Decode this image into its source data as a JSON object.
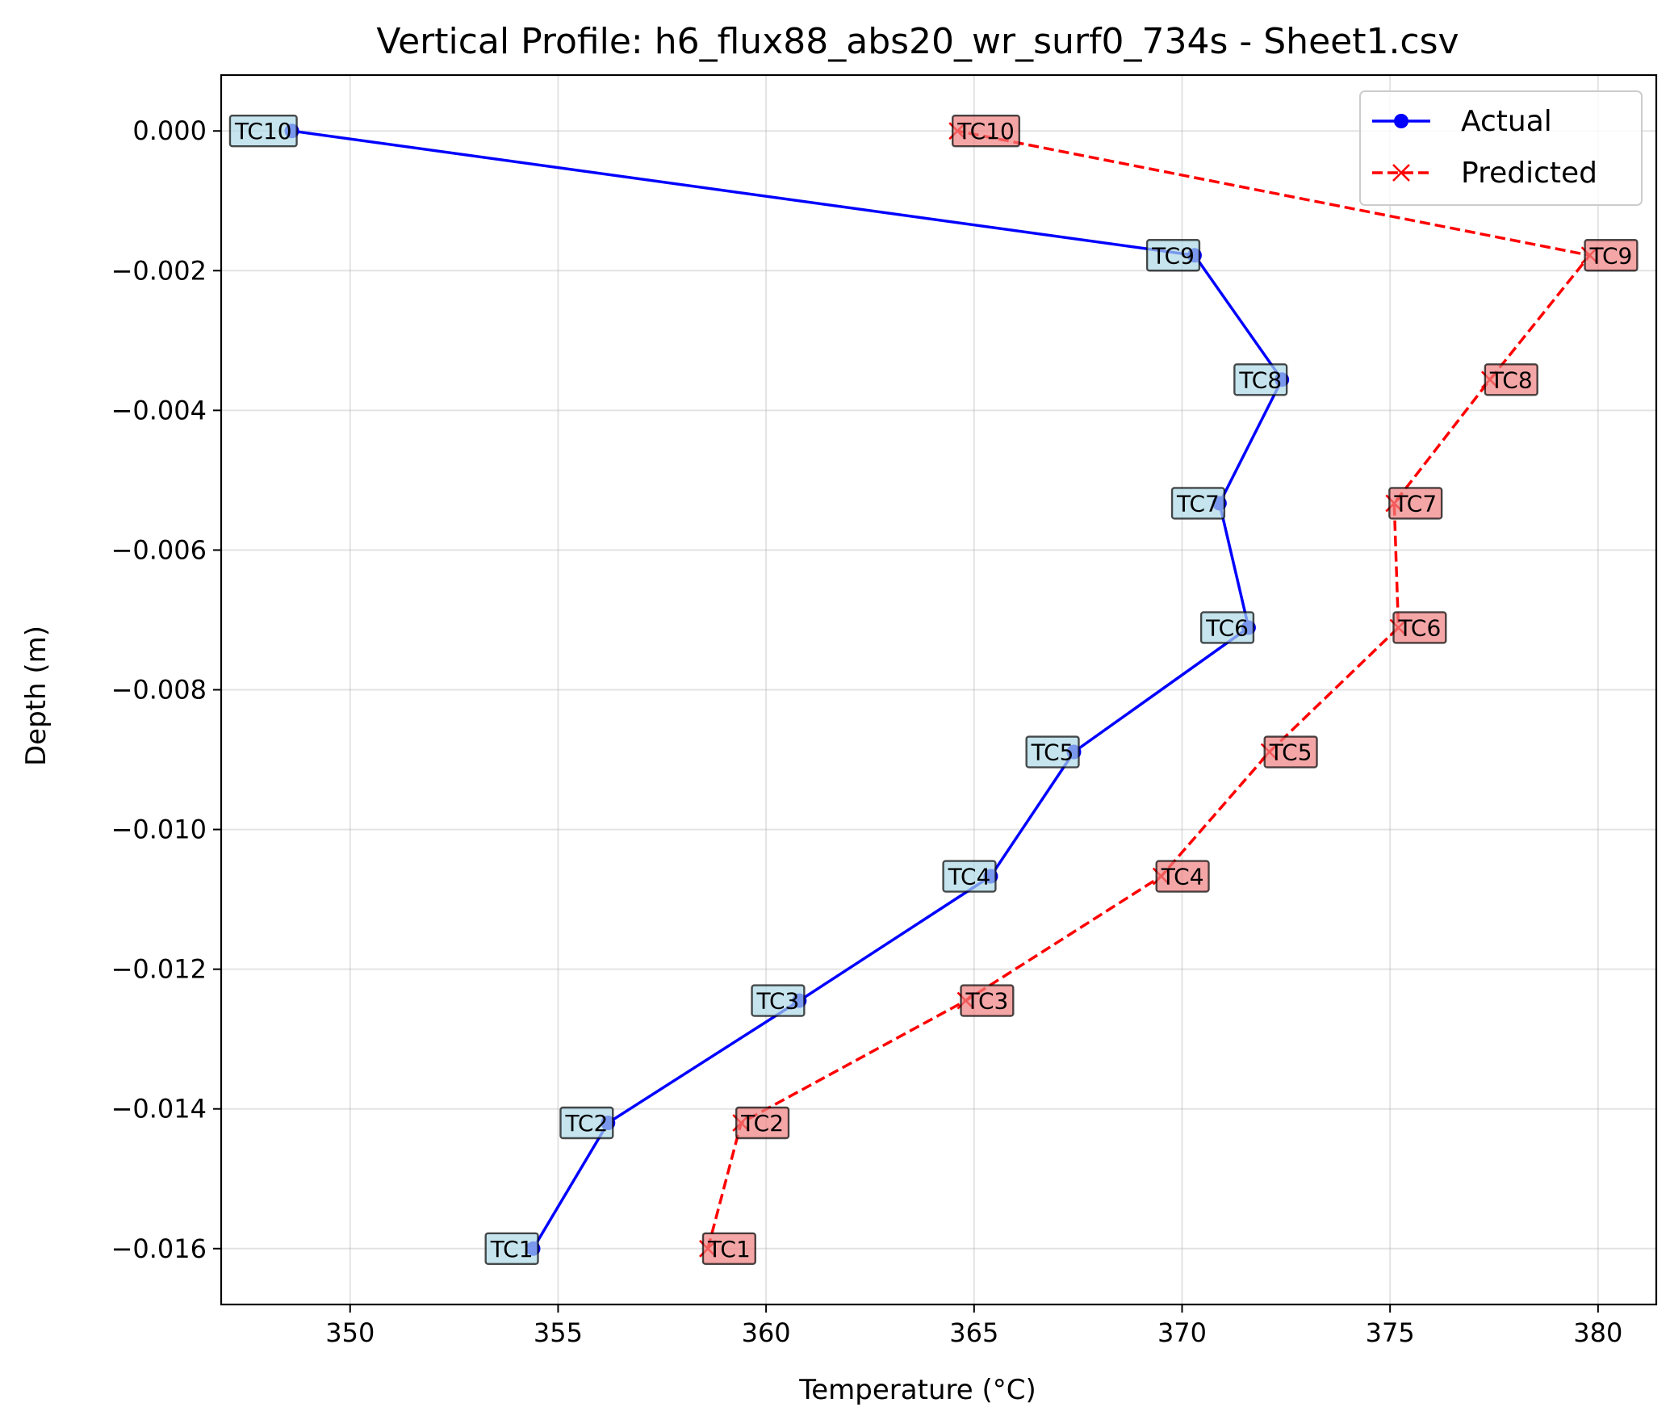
{
  "chart_data": {
    "type": "line",
    "title": "Vertical Profile: h6_flux88_abs20_wr_surf0_734s - Sheet1.csv",
    "xlabel": "Temperature (°C)",
    "ylabel": "Depth (m)",
    "xlim": [
      346.9,
      381.4
    ],
    "ylim": [
      -0.0168,
      0.0008
    ],
    "xticks": [
      350,
      355,
      360,
      365,
      370,
      375,
      380
    ],
    "xtick_labels": [
      "350",
      "355",
      "360",
      "365",
      "370",
      "375",
      "380"
    ],
    "yticks": [
      0.0,
      -0.002,
      -0.004,
      -0.006,
      -0.008,
      -0.01,
      -0.012,
      -0.014,
      -0.016
    ],
    "ytick_labels": [
      "0.000",
      "−0.002",
      "−0.004",
      "−0.006",
      "−0.008",
      "−0.010",
      "−0.012",
      "−0.014",
      "−0.016"
    ],
    "grid": true,
    "legend_position": "top-right",
    "series": [
      {
        "name": "Actual",
        "color": "#0000ff",
        "line_style": "solid",
        "marker": "circle",
        "label_bg": "#add8e6",
        "points": [
          {
            "label": "TC1",
            "temperature": 354.4,
            "depth": -0.016
          },
          {
            "label": "TC2",
            "temperature": 356.2,
            "depth": -0.0142
          },
          {
            "label": "TC3",
            "temperature": 360.8,
            "depth": -0.01245
          },
          {
            "label": "TC4",
            "temperature": 365.4,
            "depth": -0.01067
          },
          {
            "label": "TC5",
            "temperature": 367.4,
            "depth": -0.00889
          },
          {
            "label": "TC6",
            "temperature": 371.6,
            "depth": -0.00711
          },
          {
            "label": "TC7",
            "temperature": 370.9,
            "depth": -0.00533
          },
          {
            "label": "TC8",
            "temperature": 372.4,
            "depth": -0.00356
          },
          {
            "label": "TC9",
            "temperature": 370.3,
            "depth": -0.00178
          },
          {
            "label": "TC10",
            "temperature": 348.6,
            "depth": 0.0
          }
        ]
      },
      {
        "name": "Predicted",
        "color": "#ff0000",
        "line_style": "dashed",
        "marker": "x",
        "label_bg": "#f08080",
        "points": [
          {
            "label": "TC1",
            "temperature": 358.6,
            "depth": -0.016
          },
          {
            "label": "TC2",
            "temperature": 359.4,
            "depth": -0.0142
          },
          {
            "label": "TC3",
            "temperature": 364.8,
            "depth": -0.01245
          },
          {
            "label": "TC4",
            "temperature": 369.5,
            "depth": -0.01067
          },
          {
            "label": "TC5",
            "temperature": 372.1,
            "depth": -0.00889
          },
          {
            "label": "TC6",
            "temperature": 375.2,
            "depth": -0.00711
          },
          {
            "label": "TC7",
            "temperature": 375.1,
            "depth": -0.00533
          },
          {
            "label": "TC8",
            "temperature": 377.4,
            "depth": -0.00356
          },
          {
            "label": "TC9",
            "temperature": 379.8,
            "depth": -0.00178
          },
          {
            "label": "TC10",
            "temperature": 364.6,
            "depth": 0.0
          }
        ]
      }
    ]
  }
}
